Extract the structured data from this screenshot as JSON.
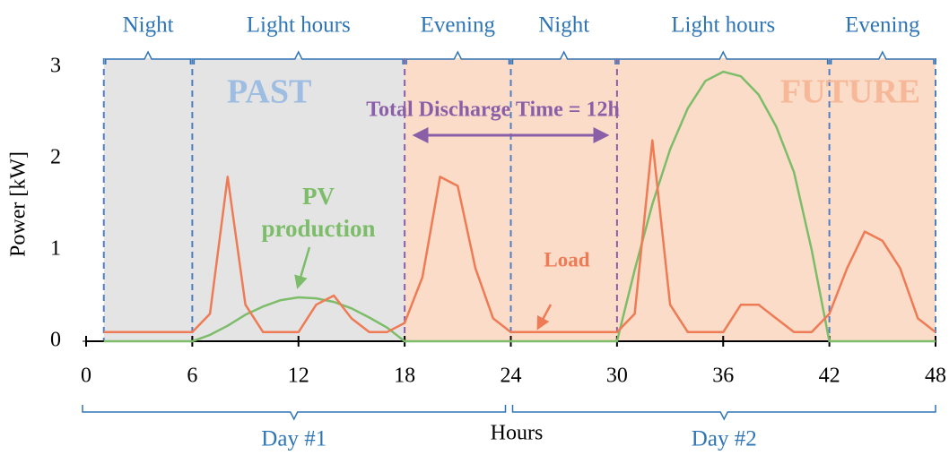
{
  "chart_data": {
    "type": "line",
    "x_label": "Hours",
    "y_label": "Power [kW]",
    "x": [
      1,
      2,
      3,
      4,
      5,
      6,
      7,
      8,
      9,
      10,
      11,
      12,
      13,
      14,
      15,
      16,
      17,
      18,
      19,
      20,
      21,
      22,
      23,
      24,
      25,
      26,
      27,
      28,
      29,
      30,
      31,
      32,
      33,
      34,
      35,
      36,
      37,
      38,
      39,
      40,
      41,
      42,
      43,
      44,
      45,
      46,
      47,
      48
    ],
    "series": [
      {
        "name": "Load",
        "color": "#ee7b55",
        "values": [
          0.1,
          0.1,
          0.1,
          0.1,
          0.1,
          0.1,
          0.3,
          1.8,
          0.4,
          0.1,
          0.1,
          0.1,
          0.4,
          0.5,
          0.25,
          0.1,
          0.1,
          0.2,
          0.7,
          1.8,
          1.7,
          0.8,
          0.25,
          0.1,
          0.1,
          0.1,
          0.1,
          0.1,
          0.1,
          0.1,
          0.3,
          2.2,
          0.4,
          0.1,
          0.1,
          0.1,
          0.4,
          0.4,
          0.25,
          0.1,
          0.1,
          0.3,
          0.8,
          1.2,
          1.1,
          0.8,
          0.25,
          0.1
        ]
      },
      {
        "name": "PV production",
        "color": "#7dbd6a",
        "values": [
          0,
          0,
          0,
          0,
          0,
          0,
          0.07,
          0.17,
          0.29,
          0.38,
          0.45,
          0.48,
          0.47,
          0.43,
          0.36,
          0.26,
          0.15,
          0,
          0,
          0,
          0,
          0,
          0,
          0,
          0,
          0,
          0,
          0,
          0,
          0,
          0.78,
          1.5,
          2.1,
          2.55,
          2.85,
          2.95,
          2.9,
          2.7,
          2.35,
          1.85,
          1.0,
          0,
          0,
          0,
          0,
          0,
          0,
          0
        ]
      }
    ],
    "xlim": [
      0,
      48
    ],
    "xticks": [
      0,
      6,
      12,
      18,
      24,
      30,
      36,
      42,
      48
    ],
    "ylim": [
      0,
      3
    ],
    "yticks": [
      0,
      1,
      2,
      3
    ],
    "regions": [
      {
        "label": "PAST",
        "start": 1,
        "end": 18,
        "color": "#e4e4e4"
      },
      {
        "label": "FUTURE",
        "start": 18,
        "end": 48,
        "color": "#fbdcc8"
      }
    ],
    "periods": [
      {
        "label": "Night",
        "start": 1,
        "end": 6
      },
      {
        "label": "Light hours",
        "start": 6,
        "end": 18
      },
      {
        "label": "Evening",
        "start": 18,
        "end": 24
      },
      {
        "label": "Night",
        "start": 24,
        "end": 30
      },
      {
        "label": "Light hours",
        "start": 30,
        "end": 42
      },
      {
        "label": "Evening",
        "start": 42,
        "end": 48
      }
    ],
    "days": [
      {
        "label": "Day #1",
        "start": 0,
        "end": 24
      },
      {
        "label": "Day #2",
        "start": 24,
        "end": 48
      }
    ],
    "discharge": {
      "text": "Total Discharge Time = 12h",
      "start": 18,
      "end": 30
    }
  }
}
